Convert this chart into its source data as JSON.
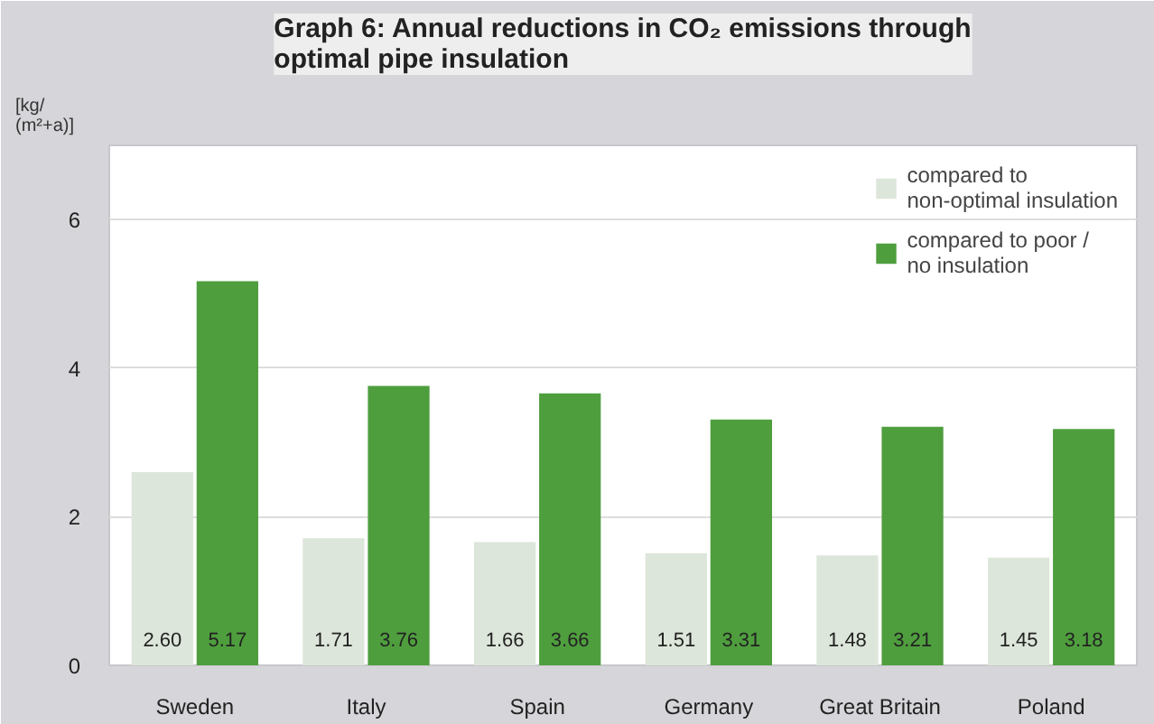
{
  "chart_data": {
    "type": "bar",
    "title": "Graph 6: Annual reductions in CO₂ emissions through\noptimal pipe insulation",
    "ylabel": "[kg/\n(m²+a)]",
    "categories": [
      "Sweden",
      "Italy",
      "Spain",
      "Germany",
      "Great Britain",
      "Poland"
    ],
    "series": [
      {
        "name": "compared to\nnon-optimal insulation",
        "color": "#dde6da",
        "values": [
          2.6,
          1.71,
          1.66,
          1.51,
          1.48,
          1.45
        ],
        "value_labels": [
          "2.60",
          "1.71",
          "1.66",
          "1.51",
          "1.48",
          "1.45"
        ]
      },
      {
        "name": "compared to poor /\nno insulation",
        "color": "#4f9e3e",
        "values": [
          5.17,
          3.76,
          3.66,
          3.31,
          3.21,
          3.18
        ],
        "value_labels": [
          "5.17",
          "3.76",
          "3.66",
          "3.31",
          "3.21",
          "3.18"
        ]
      }
    ],
    "ylim": [
      0,
      7
    ],
    "yticks": [
      0,
      2,
      4,
      6
    ],
    "grid": "y",
    "legend": "top right"
  }
}
